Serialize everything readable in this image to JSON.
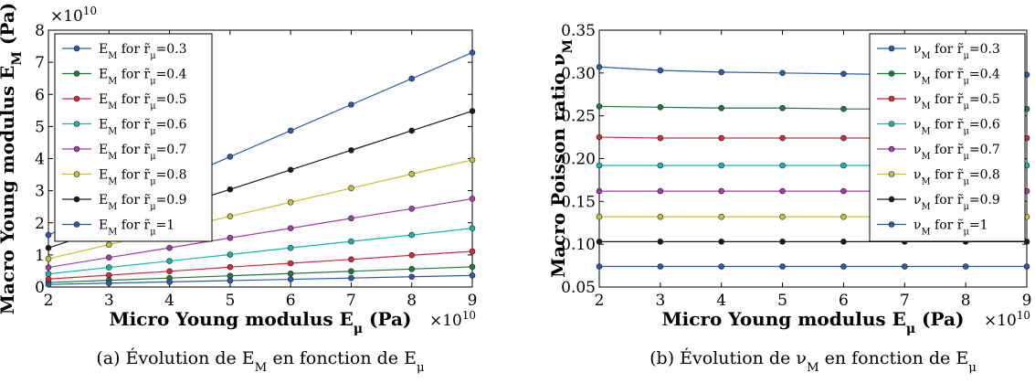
{
  "chart_data": [
    {
      "type": "line",
      "caption": "(a) Évolution de E_M en fonction de E_μ",
      "xlabel": "Micro Young modulus E_μ (Pa)",
      "ylabel": "Macro Young modulus E_M (Pa)",
      "x_multiplier": "×10^10",
      "y_multiplier": "×10^10",
      "xlim": [
        2,
        9
      ],
      "ylim": [
        0,
        8
      ],
      "xticks": [
        "2",
        "3",
        "4",
        "5",
        "6",
        "7",
        "8",
        "9"
      ],
      "yticks": [
        "0",
        "1",
        "2",
        "3",
        "4",
        "5",
        "6",
        "7",
        "8"
      ],
      "x": [
        2,
        3,
        4,
        5,
        6,
        7,
        8,
        9
      ],
      "legend_position": "top-left",
      "series": [
        {
          "name": "E_M for r̃_μ=0.3",
          "color": "#2b5ba8",
          "values": [
            1.62,
            2.43,
            3.24,
            4.06,
            4.87,
            5.68,
            6.49,
            7.3
          ]
        },
        {
          "name": "E_M for r̃_μ=0.4",
          "color": "#1e7a3e",
          "values": [
            0.14,
            0.21,
            0.28,
            0.35,
            0.42,
            0.49,
            0.56,
            0.63
          ]
        },
        {
          "name": "E_M for r̃_μ=0.5",
          "color": "#d42a3a",
          "values": [
            0.25,
            0.37,
            0.49,
            0.62,
            0.74,
            0.86,
            0.99,
            1.11
          ]
        },
        {
          "name": "E_M for r̃_μ=0.6",
          "color": "#17b5b0",
          "values": [
            0.41,
            0.61,
            0.81,
            1.01,
            1.22,
            1.42,
            1.62,
            1.83
          ]
        },
        {
          "name": "E_M for r̃_μ=0.7",
          "color": "#a23ca6",
          "values": [
            0.61,
            0.92,
            1.22,
            1.53,
            1.83,
            2.14,
            2.44,
            2.75
          ]
        },
        {
          "name": "E_M for r̃_μ=0.8",
          "color": "#c2c232",
          "values": [
            0.88,
            1.32,
            1.76,
            2.2,
            2.64,
            3.08,
            3.52,
            3.96
          ]
        },
        {
          "name": "E_M for r̃_μ=0.9",
          "color": "#1a1a1a",
          "values": [
            1.22,
            1.83,
            2.44,
            3.04,
            3.65,
            4.26,
            4.87,
            5.48
          ]
        },
        {
          "name": "E_M for r̃_μ=1",
          "color": "#2b5ba8",
          "values": [
            0.08,
            0.12,
            0.16,
            0.2,
            0.24,
            0.28,
            0.32,
            0.36
          ]
        }
      ]
    },
    {
      "type": "line",
      "caption": "(b) Évolution de ν_M en fonction de E_μ",
      "xlabel": "Micro Young modulus E_μ (Pa)",
      "ylabel": "Macro Poisson ratio ν_M",
      "x_multiplier": "×10^10",
      "xlim": [
        2,
        9
      ],
      "ylim": [
        0.05,
        0.35
      ],
      "xticks": [
        "2",
        "3",
        "4",
        "5",
        "6",
        "7",
        "8",
        "9"
      ],
      "yticks": [
        "0.05",
        "0.10",
        "0.15",
        "0.20",
        "0.25",
        "0.30",
        "0.35"
      ],
      "x": [
        2,
        3,
        4,
        5,
        6,
        7,
        8,
        9
      ],
      "legend_position": "top-right",
      "series": [
        {
          "name": "ν_M for r̃_μ=0.3",
          "color": "#2b5ba8",
          "values": [
            0.307,
            0.303,
            0.301,
            0.3,
            0.299,
            0.298,
            0.298,
            0.298
          ]
        },
        {
          "name": "ν_M for r̃_μ=0.4",
          "color": "#1e7a3e",
          "values": [
            0.261,
            0.26,
            0.259,
            0.259,
            0.258,
            0.258,
            0.258,
            0.258
          ]
        },
        {
          "name": "ν_M for r̃_μ=0.5",
          "color": "#d42a3a",
          "values": [
            0.225,
            0.224,
            0.224,
            0.224,
            0.224,
            0.224,
            0.224,
            0.224
          ]
        },
        {
          "name": "ν_M for r̃_μ=0.6",
          "color": "#17b5b0",
          "values": [
            0.192,
            0.192,
            0.192,
            0.192,
            0.192,
            0.192,
            0.192,
            0.192
          ]
        },
        {
          "name": "ν_M for r̃_μ=0.7",
          "color": "#a23ca6",
          "values": [
            0.162,
            0.162,
            0.162,
            0.162,
            0.162,
            0.162,
            0.162,
            0.162
          ]
        },
        {
          "name": "ν_M for r̃_μ=0.8",
          "color": "#c2c232",
          "values": [
            0.132,
            0.132,
            0.132,
            0.132,
            0.132,
            0.132,
            0.132,
            0.132
          ]
        },
        {
          "name": "ν_M for r̃_μ=0.9",
          "color": "#1a1a1a",
          "values": [
            0.103,
            0.103,
            0.103,
            0.103,
            0.103,
            0.103,
            0.103,
            0.103
          ]
        },
        {
          "name": "ν_M for r̃_μ=1",
          "color": "#2b5ba8",
          "values": [
            0.074,
            0.074,
            0.074,
            0.074,
            0.074,
            0.074,
            0.074,
            0.074
          ]
        }
      ]
    }
  ]
}
